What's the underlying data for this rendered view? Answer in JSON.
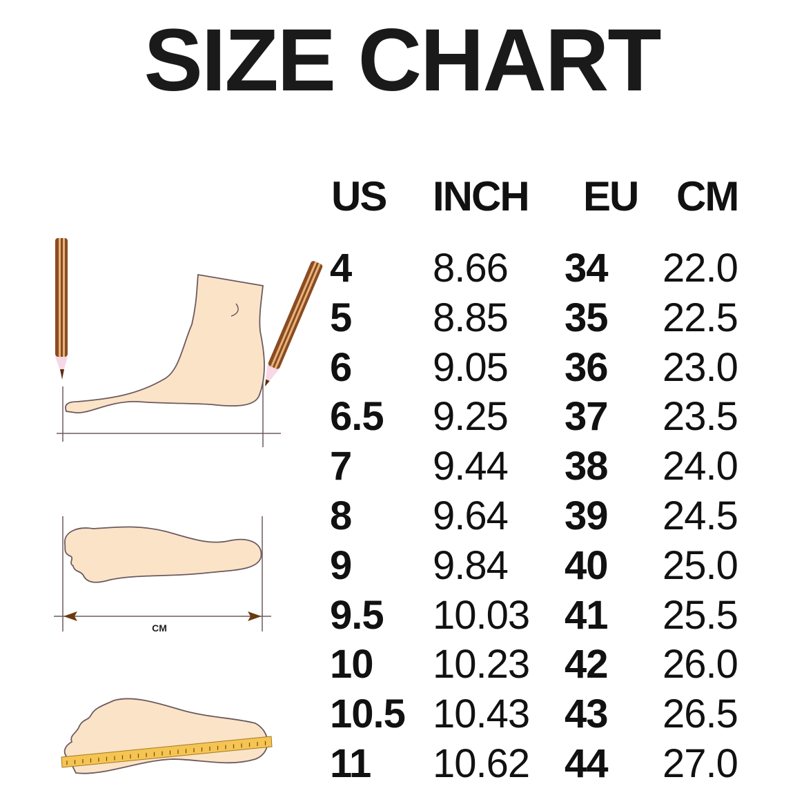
{
  "title": "SIZE CHART",
  "illustration": {
    "measure_label": "CM"
  },
  "chart_data": {
    "type": "table",
    "title": "SIZE CHART",
    "columns": [
      "US",
      "INCH",
      "EU",
      "CM"
    ],
    "rows": [
      [
        "4",
        "8.66",
        "34",
        "22.0"
      ],
      [
        "5",
        "8.85",
        "35",
        "22.5"
      ],
      [
        "6",
        "9.05",
        "36",
        "23.0"
      ],
      [
        "6.5",
        "9.25",
        "37",
        "23.5"
      ],
      [
        "7",
        "9.44",
        "38",
        "24.0"
      ],
      [
        "8",
        "9.64",
        "39",
        "24.5"
      ],
      [
        "9",
        "9.84",
        "40",
        "25.0"
      ],
      [
        "9.5",
        "10.03",
        "41",
        "25.5"
      ],
      [
        "10",
        "10.23",
        "42",
        "26.0"
      ],
      [
        "10.5",
        "10.43",
        "43",
        "26.5"
      ],
      [
        "11",
        "10.62",
        "44",
        "27.0"
      ]
    ]
  },
  "colors": {
    "skin": "#fbe3c8",
    "outline": "#6b5a5e",
    "pencil": "#8a4b22",
    "ruler": "#f5c453"
  }
}
